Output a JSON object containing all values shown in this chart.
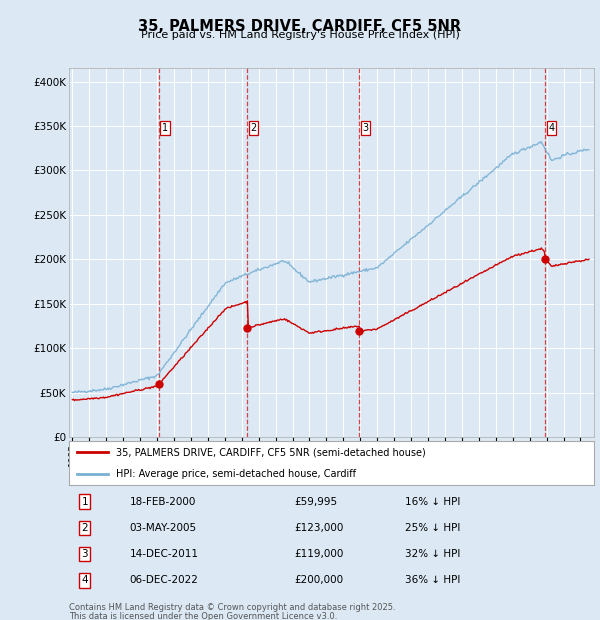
{
  "title": "35, PALMERS DRIVE, CARDIFF, CF5 5NR",
  "subtitle": "Price paid vs. HM Land Registry's House Price Index (HPI)",
  "ylabel_ticks": [
    "£0",
    "£50K",
    "£100K",
    "£150K",
    "£200K",
    "£250K",
    "£300K",
    "£350K",
    "£400K"
  ],
  "ytick_values": [
    0,
    50000,
    100000,
    150000,
    200000,
    250000,
    300000,
    350000,
    400000
  ],
  "ylim": [
    0,
    415000
  ],
  "xlim_start": 1994.8,
  "xlim_end": 2025.8,
  "background_color": "#dce9f5",
  "plot_bg_color": "#dce9f5",
  "grid_color": "#ffffff",
  "sales": [
    {
      "num": 1,
      "date": "18-FEB-2000",
      "year": 2000.12,
      "price": 59995,
      "pct": "16% ↓ HPI"
    },
    {
      "num": 2,
      "date": "03-MAY-2005",
      "year": 2005.33,
      "price": 123000,
      "pct": "25% ↓ HPI"
    },
    {
      "num": 3,
      "date": "14-DEC-2011",
      "year": 2011.95,
      "price": 119000,
      "pct": "32% ↓ HPI"
    },
    {
      "num": 4,
      "date": "06-DEC-2022",
      "year": 2022.92,
      "price": 200000,
      "pct": "36% ↓ HPI"
    }
  ],
  "legend_line1": "35, PALMERS DRIVE, CARDIFF, CF5 5NR (semi-detached house)",
  "legend_line2": "HPI: Average price, semi-detached house, Cardiff",
  "footnote1": "Contains HM Land Registry data © Crown copyright and database right 2025.",
  "footnote2": "This data is licensed under the Open Government Licence v3.0.",
  "red_color": "#cc0000",
  "blue_color": "#7ab0d4",
  "marker_y": 348000
}
